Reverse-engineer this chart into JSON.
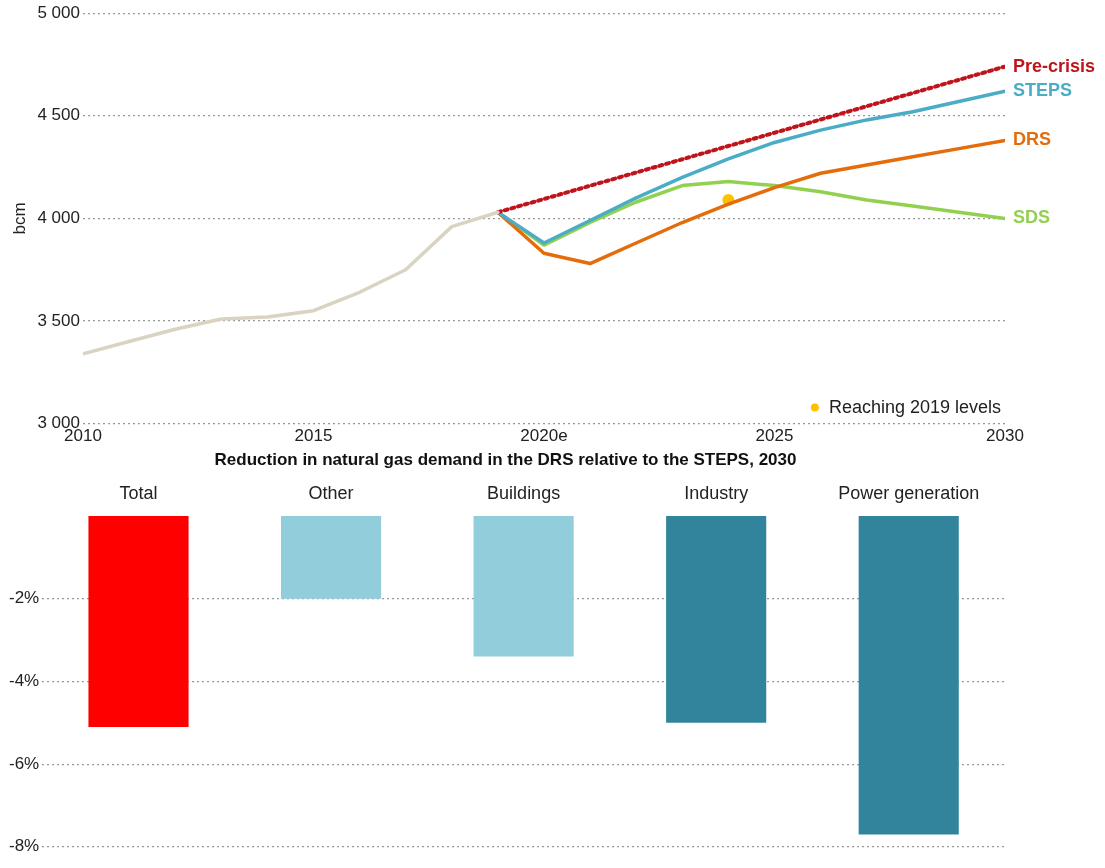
{
  "chart_data": [
    {
      "type": "line",
      "ylabel": "bcm",
      "xlim": [
        2010,
        2030
      ],
      "xticks": [
        2010,
        2015,
        {
          "value": 2020,
          "label": "2020e"
        },
        2025,
        2030
      ],
      "ylim": [
        3000,
        5000
      ],
      "yticks": [
        {
          "value": 3000,
          "label": "3 000"
        },
        {
          "value": 3500,
          "label": "3 500"
        },
        {
          "value": 4000,
          "label": "4 000"
        },
        {
          "value": 4500,
          "label": "4 500"
        },
        {
          "value": 5000,
          "label": "5 000"
        }
      ],
      "grid": "y",
      "legend": "bottom right",
      "series": [
        {
          "color": "#d9d3c1",
          "x": [
            2010,
            2011,
            2012,
            2013,
            2014,
            2015,
            2016,
            2017,
            2018,
            2019
          ],
          "values": [
            3340,
            3400,
            3460,
            3510,
            3520,
            3550,
            3640,
            3750,
            3960,
            4030
          ]
        },
        {
          "name": "Pre-crisis",
          "color": "#c0141c",
          "line_style": "dotted",
          "x": [
            2019,
            2030
          ],
          "values": [
            4030,
            4740
          ]
        },
        {
          "name": "STEPS",
          "color": "#4bacc6",
          "x": [
            2019,
            2020,
            2021,
            2022,
            2023,
            2024,
            2025,
            2026,
            2027,
            2028,
            2029,
            2030
          ],
          "values": [
            4030,
            3880,
            3990,
            4100,
            4200,
            4290,
            4370,
            4430,
            4480,
            4520,
            4570,
            4620
          ]
        },
        {
          "name": "DRS",
          "color": "#e46c0a",
          "x": [
            2019,
            2020,
            2021,
            2022,
            2023,
            2024,
            2025,
            2026,
            2027,
            2028,
            2029,
            2030
          ],
          "values": [
            4030,
            3830,
            3780,
            3880,
            3980,
            4070,
            4150,
            4220,
            4260,
            4300,
            4340,
            4380
          ]
        },
        {
          "name": "SDS",
          "color": "#92d050",
          "x": [
            2019,
            2020,
            2021,
            2022,
            2023,
            2024,
            2025,
            2026,
            2027,
            2028,
            2029,
            2030
          ],
          "values": [
            4030,
            3870,
            3980,
            4080,
            4160,
            4180,
            4160,
            4130,
            4090,
            4060,
            4030,
            4000
          ]
        },
        {
          "name": "Reaching 2019 levels",
          "type": "scatter",
          "color": "#ffc000",
          "x": [
            2024
          ],
          "values": [
            4090
          ]
        }
      ]
    },
    {
      "type": "bar",
      "title": "Reduction in natural gas demand in the DRS relative to the STEPS, 2030",
      "categories": [
        "Total",
        "Other",
        "Buildings",
        "Industry",
        "Power generation"
      ],
      "values": [
        -5.1,
        -2.0,
        -3.4,
        -5.0,
        -7.7
      ],
      "colors": [
        "#ff0000",
        "#92cddc",
        "#92cddc",
        "#31849b",
        "#31849b"
      ],
      "ylim": [
        -8,
        0
      ],
      "yticks": [
        {
          "value": -8,
          "label": "-8%"
        },
        {
          "value": -6,
          "label": "-6%"
        },
        {
          "value": -4,
          "label": "-4%"
        },
        {
          "value": -2,
          "label": "-2%"
        }
      ],
      "grid": "y"
    }
  ]
}
